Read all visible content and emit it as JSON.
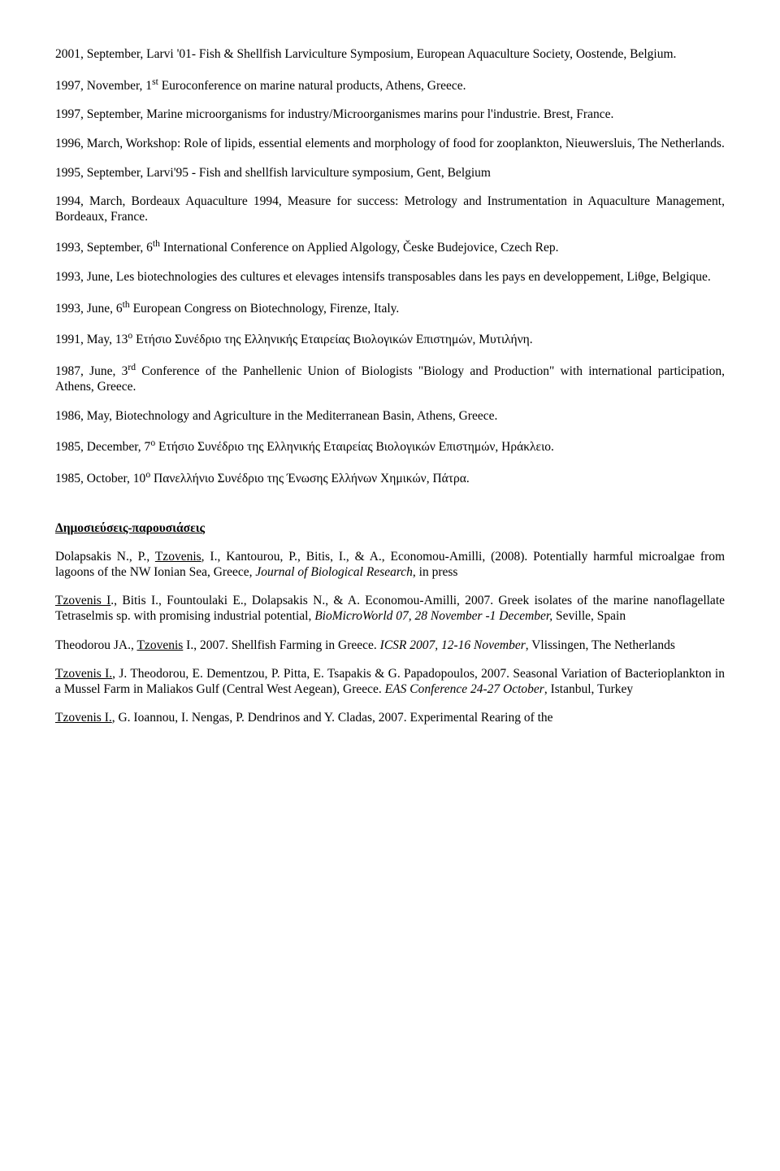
{
  "entries": [
    {
      "html": "2001, September, Larvi '01- Fish & Shellfish Larviculture Symposium<span class='ital'>,</span> European Aquaculture Society, Oostende, Belgium."
    },
    {
      "html": "1997, November, 1<sup>st</sup> Euroconference on marine natural products, Athens, Greece."
    },
    {
      "html": "1997, September, Marine microorganisms for industry/Microorganismes marins pour l'industrie. Brest, France."
    },
    {
      "html": "1996, March, Workshop: Role of lipids, essential elements and morphology of food for zooplankton, Nieuwersluis, The Netherlands."
    },
    {
      "html": "1995, September, Larvi'95 - Fish and shellfish larviculture symposium, Gent, Belgium"
    },
    {
      "html": "1994, March, Bordeaux Aquaculture 1994, Measure for success: Metrology and Instrumentation in Aquaculture Management, Bordeaux, France."
    },
    {
      "html": "1993, September, 6<sup>th</sup> International Conference on Applied Algology, Česke Budejovice, Czech Rep."
    },
    {
      "html": "1993, June, Les biotechnologies des cultures et elevages intensifs transposables dans les pays en developpement, Liθge, Belgique."
    },
    {
      "html": "1993, June, 6<sup>th</sup> European Congress on Biotechnology, Firenze, Italy."
    },
    {
      "html": "1991, May, 13<sup>ο</sup> Ετήσιο Συνέδριο της Ελληνικής Εταιρείας Βιολογικών Επιστημών, Μυτιλήνη."
    },
    {
      "html": "1987, June, 3<sup>rd</sup> Conference of the Panhellenic Union of Biologists \"Biology and Production\" with international participation, Athens, Greece."
    },
    {
      "html": "1986, May, Biotechnology and Agriculture in the Mediterranean Basin, Athens, Greece."
    },
    {
      "html": "1985, December, 7<sup>ο</sup> Ετήσιο Συνέδριο της Ελληνικής Εταιρείας Βιολογικών Επιστημών, Ηράκλειο."
    },
    {
      "html": "1985, October, 10<sup>ο</sup> Πανελλήνιο Συνέδριο της Ένωσης Ελλήνων Χημικών, Πάτρα."
    }
  ],
  "section_heading": "Δημοσιεύσεις-παρουσιάσεις",
  "pubs": [
    {
      "html": "Dolapsakis N., P., <span class='under'>Tzovenis</span>, I., Kantourou, P., Bitis, I., & A., Economou-Amilli, (2008). Potentially harmful microalgae from lagoons of the NW Ionian Sea, Greece, <span class='ital'>Journal of Biological Research</span>, in press"
    },
    {
      "html": "<span class='under'>Tzovenis I</span>., Bitis I., Fountoulaki E., Dolapsakis N., & A. Economou-Amilli, 2007. Greek isolates of the marine nanoflagellate Tetraselmis sp. with promising industrial potential, <span class='ital'>BioMicroWorld 07, 28 November -1 December,</span> Seville, Spain"
    },
    {
      "html": "Theodorou JA., <span class='under'>Tzovenis</span> I., 2007. Shellfish Farming in Greece. <span class='ital'>ICSR 2007, 12-16 November</span>, Vlissingen, The Netherlands"
    },
    {
      "html": "<span class='under'>Tzovenis I.</span>, J. Theodorou, E. Dementzou, P. Pitta, E. Tsapakis & G. Papadopoulos, 2007. Seasonal Variation of Bacterioplankton in a Mussel Farm in Maliakos Gulf (Central West Aegean), Greece. <span class='ital'>EAS Conference 24-27 October</span>, Istanbul, Turkey"
    },
    {
      "html": "<span class='under'>Tzovenis I.</span>, G. Ioannou, I. Nengas, P. Dendrinos and Y. Cladas, 2007. Experimental Rearing of the"
    }
  ]
}
